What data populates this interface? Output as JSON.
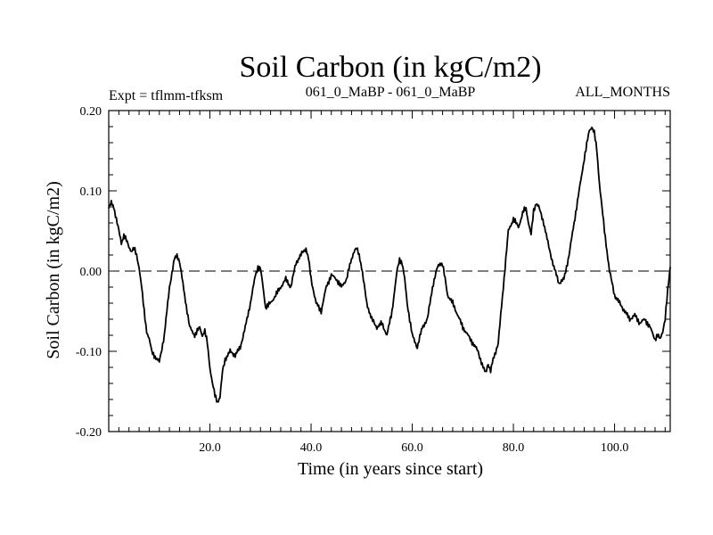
{
  "chart_data": {
    "type": "line",
    "title": "Soil Carbon (in kgC/m2)",
    "subtitle_left": "Expt = tflmm-tfksm",
    "subtitle_center": "061_0_MaBP - 061_0_MaBP",
    "subtitle_right": "ALL_MONTHS",
    "xlabel": "Time (in years since start)",
    "ylabel": "Soil Carbon (in kgC/m2)",
    "xlim": [
      0,
      111
    ],
    "ylim": [
      -0.2,
      0.2
    ],
    "x_ticks": [
      20,
      40,
      60,
      80,
      100
    ],
    "x_tick_labels": [
      "20.0",
      "40.0",
      "60.0",
      "80.0",
      "100.0"
    ],
    "y_ticks": [
      -0.2,
      -0.1,
      0.0,
      0.1,
      0.2
    ],
    "y_tick_labels": [
      "-0.20",
      "-0.10",
      "0.00",
      "0.10",
      "0.20"
    ],
    "reference_line": {
      "y": 0.0,
      "style": "dashed"
    },
    "series": [
      {
        "name": "Soil Carbon",
        "x": [
          0,
          0.5,
          1.0,
          1.5,
          2.0,
          2.5,
          3.0,
          3.5,
          4.0,
          4.5,
          5.0,
          5.5,
          6.0,
          6.5,
          7.0,
          7.5,
          8.0,
          8.5,
          9.0,
          9.5,
          10.0,
          11.0,
          12.0,
          13.0,
          13.5,
          14.0,
          15.0,
          16.0,
          17.0,
          18.0,
          18.5,
          19.0,
          19.5,
          20.0,
          20.5,
          21.0,
          21.5,
          22.0,
          22.5,
          23.0,
          24.0,
          25.0,
          26.0,
          27.0,
          28.0,
          29.0,
          29.5,
          30.0,
          30.5,
          31.0,
          32.0,
          33.0,
          34.0,
          35.0,
          36.0,
          37.0,
          38.0,
          38.5,
          39.0,
          39.5,
          40.0,
          41.0,
          42.0,
          43.0,
          44.0,
          45.0,
          46.0,
          47.0,
          48.0,
          48.5,
          49.0,
          49.5,
          50.0,
          51.0,
          52.0,
          53.0,
          54.0,
          55.0,
          56.0,
          57.0,
          57.5,
          58.0,
          58.5,
          59.0,
          60.0,
          61.0,
          62.0,
          63.0,
          64.0,
          65.0,
          65.5,
          66.0,
          66.5,
          67.0,
          68.0,
          69.0,
          70.0,
          71.0,
          72.0,
          73.0,
          74.0,
          74.5,
          75.0,
          75.5,
          76.0,
          77.0,
          78.0,
          79.0,
          80.0,
          81.0,
          82.0,
          82.5,
          83.0,
          83.5,
          84.0,
          84.5,
          85.0,
          86.0,
          87.0,
          88.0,
          89.0,
          90.0,
          91.0,
          92.0,
          93.0,
          94.0,
          95.0,
          95.5,
          96.0,
          96.5,
          97.0,
          98.0,
          99.0,
          100.0,
          101.0,
          102.0,
          103.0,
          104.0,
          105.0,
          106.0,
          107.0,
          108.0,
          108.5,
          109.0,
          109.5,
          110.0,
          110.5,
          111.0
        ],
        "y": [
          0.078,
          0.085,
          0.08,
          0.065,
          0.05,
          0.035,
          0.045,
          0.038,
          0.03,
          0.025,
          0.028,
          0.02,
          0.005,
          -0.02,
          -0.05,
          -0.075,
          -0.085,
          -0.1,
          -0.105,
          -0.11,
          -0.113,
          -0.08,
          -0.02,
          0.015,
          0.02,
          0.012,
          -0.03,
          -0.07,
          -0.08,
          -0.07,
          -0.08,
          -0.075,
          -0.09,
          -0.12,
          -0.14,
          -0.155,
          -0.163,
          -0.157,
          -0.125,
          -0.11,
          -0.1,
          -0.105,
          -0.095,
          -0.07,
          -0.04,
          -0.005,
          0.005,
          0.003,
          -0.02,
          -0.045,
          -0.04,
          -0.03,
          -0.02,
          -0.01,
          -0.02,
          0.01,
          0.02,
          0.025,
          0.028,
          0.015,
          -0.01,
          -0.04,
          -0.05,
          -0.02,
          -0.005,
          -0.01,
          -0.02,
          -0.01,
          0.015,
          0.025,
          0.028,
          0.02,
          0.005,
          -0.04,
          -0.06,
          -0.07,
          -0.065,
          -0.08,
          -0.05,
          0.0,
          0.015,
          0.01,
          -0.01,
          -0.04,
          -0.08,
          -0.095,
          -0.07,
          -0.06,
          -0.02,
          0.005,
          0.01,
          0.008,
          -0.01,
          -0.03,
          -0.04,
          -0.055,
          -0.07,
          -0.08,
          -0.09,
          -0.1,
          -0.12,
          -0.127,
          -0.115,
          -0.125,
          -0.11,
          -0.09,
          -0.02,
          0.05,
          0.065,
          0.055,
          0.075,
          0.078,
          0.06,
          0.045,
          0.075,
          0.085,
          0.08,
          0.06,
          0.03,
          0.005,
          -0.015,
          -0.01,
          0.02,
          0.06,
          0.1,
          0.14,
          0.175,
          0.18,
          0.172,
          0.15,
          0.11,
          0.05,
          0.0,
          -0.03,
          -0.04,
          -0.05,
          -0.06,
          -0.055,
          -0.065,
          -0.06,
          -0.07,
          -0.085,
          -0.08,
          -0.085,
          -0.075,
          -0.06,
          -0.025,
          0.005
        ]
      }
    ]
  }
}
